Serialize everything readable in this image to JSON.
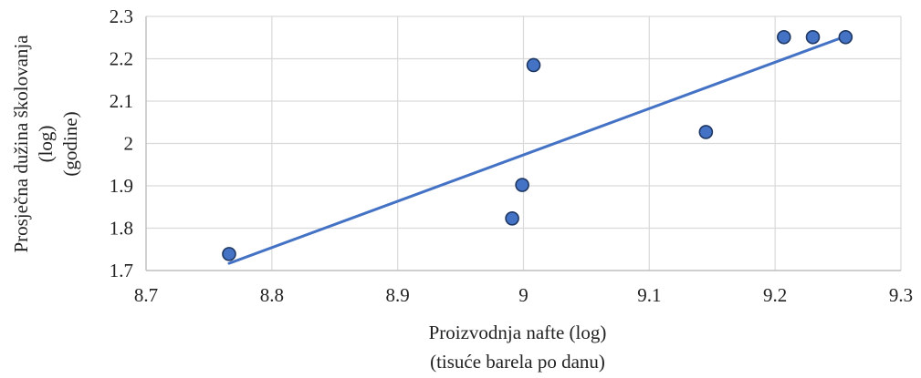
{
  "chart_data": {
    "type": "scatter",
    "title": "",
    "xlabel": [
      "Proizvodnja nafte (log)",
      "(tisuće barela po danu)"
    ],
    "ylabel": [
      "Prosječna dužina školovanja",
      "(log)",
      "(godine)"
    ],
    "xlim": [
      8.7,
      9.3
    ],
    "ylim": [
      1.7,
      2.3
    ],
    "x_ticks": [
      "8.7",
      "8.8",
      "8.9",
      "9",
      "9.1",
      "9.2",
      "9.3"
    ],
    "y_ticks": [
      "1.7",
      "1.8",
      "1.9",
      "2",
      "2.1",
      "2.2",
      "2.3"
    ],
    "grid": true,
    "legend": "none",
    "points": [
      {
        "x": 8.766,
        "y": 1.739
      },
      {
        "x": 8.991,
        "y": 1.823
      },
      {
        "x": 8.999,
        "y": 1.902
      },
      {
        "x": 9.008,
        "y": 2.185
      },
      {
        "x": 9.145,
        "y": 2.027
      },
      {
        "x": 9.207,
        "y": 2.251
      },
      {
        "x": 9.23,
        "y": 2.251
      },
      {
        "x": 9.256,
        "y": 2.251
      }
    ],
    "trendline": {
      "x": [
        8.766,
        9.256
      ],
      "y": [
        1.717,
        2.253
      ]
    },
    "colors": {
      "marker": "#4472C4",
      "marker_edge": "#1F3864",
      "trendline": "#4472C4",
      "grid": "#D9D9D9",
      "axis": "#BFBFBF"
    }
  }
}
